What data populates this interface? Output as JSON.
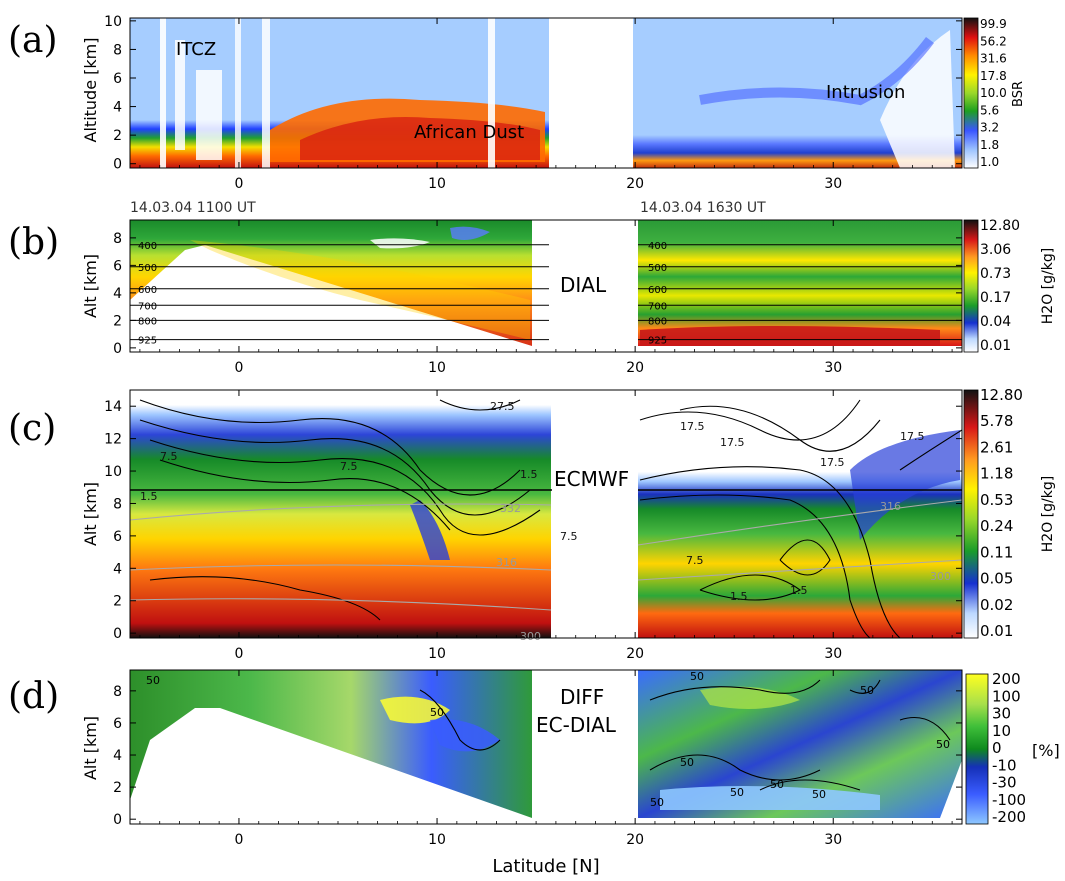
{
  "chart_data": [
    {
      "type": "heatmap",
      "panel_label": "(a)",
      "ylabel": "Altitude [km]",
      "xlim": [
        -5.5,
        36.5
      ],
      "ylim": [
        -0.3,
        10.2
      ],
      "xticks": [
        "0",
        "10",
        "20",
        "30"
      ],
      "yticks": [
        "0",
        "2",
        "4",
        "6",
        "8",
        "10"
      ],
      "colorbar_label": "BSR",
      "colorbar_ticks": [
        "99.9",
        "56.2",
        "31.6",
        "17.8",
        "10.0",
        "5.6",
        "3.2",
        "1.8",
        "1.0"
      ],
      "annotations": [
        "ITCZ",
        "African Dust",
        "Intrusion"
      ],
      "data_gap": [
        15.8,
        20.2
      ]
    },
    {
      "type": "heatmap",
      "panel_label": "(b)",
      "ylabel": "Alt [km]",
      "xlim": [
        -5.5,
        36.5
      ],
      "ylim": [
        -0.3,
        9.3
      ],
      "xticks": [
        "0",
        "10",
        "20",
        "30"
      ],
      "yticks": [
        "0",
        "2",
        "4",
        "6",
        "8"
      ],
      "colorbar_label": "H2O [g/kg]",
      "colorbar_ticks": [
        "12.80",
        "3.06",
        "0.73",
        "0.17",
        "0.04",
        "0.01"
      ],
      "flight_labels": [
        "14.03.04 1100 UT",
        "14.03.04 1630 UT"
      ],
      "annotation": "DIAL",
      "pressure_levels": [
        {
          "label": "400",
          "alt": 7.5
        },
        {
          "label": "500",
          "alt": 5.9
        },
        {
          "label": "600",
          "alt": 4.3
        },
        {
          "label": "700",
          "alt": 3.1
        },
        {
          "label": "800",
          "alt": 2.0
        },
        {
          "label": "925",
          "alt": 0.6
        }
      ],
      "data_gap": [
        15.0,
        20.2
      ]
    },
    {
      "type": "heatmap",
      "panel_label": "(c)",
      "ylabel": "Alt [km]",
      "xlim": [
        -5.5,
        36.5
      ],
      "ylim": [
        -0.3,
        15.0
      ],
      "xticks": [
        "0",
        "10",
        "20",
        "30"
      ],
      "yticks": [
        "0",
        "2",
        "4",
        "6",
        "8",
        "10",
        "12",
        "14"
      ],
      "colorbar_label": "H2O [g/kg]",
      "colorbar_ticks": [
        "12.80",
        "5.78",
        "2.61",
        "1.18",
        "0.53",
        "0.24",
        "0.11",
        "0.05",
        "0.02",
        "0.01"
      ],
      "annotation": "ECMWF",
      "contour_labels": [
        "27.5",
        "17.5",
        "17.5",
        "17.5",
        "17.5",
        "7.5",
        "7.5",
        "7.5",
        "7.5",
        "1.5",
        "1.5",
        "1.5",
        "1.5",
        "332",
        "316",
        "316",
        "300",
        "300"
      ],
      "data_gap": [
        15.8,
        20.2
      ]
    },
    {
      "type": "heatmap",
      "panel_label": "(d)",
      "xlabel": "Latitude [N]",
      "ylabel": "Alt [km]",
      "xlim": [
        -5.5,
        36.5
      ],
      "ylim": [
        -0.3,
        9.3
      ],
      "xticks": [
        "0",
        "10",
        "20",
        "30"
      ],
      "yticks": [
        "0",
        "2",
        "4",
        "6",
        "8"
      ],
      "colorbar_label": "[%]",
      "colorbar_ticks": [
        "200",
        "100",
        "30",
        "10",
        "0",
        "-10",
        "-30",
        "-100",
        "-200"
      ],
      "annotation": [
        "DIFF",
        "EC-DIAL"
      ],
      "contour_labels": [
        "50",
        "50",
        "50",
        "50",
        "50",
        "50",
        "50",
        "50",
        "50",
        "50"
      ],
      "data_gap": [
        15.0,
        20.2
      ]
    }
  ]
}
